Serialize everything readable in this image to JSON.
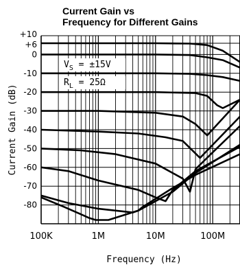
{
  "chart_data": {
    "type": "line",
    "title_line1": "Current Gain vs",
    "title_line2": "Frequency for Different Gains",
    "xlabel": "Frequency (Hz)",
    "ylabel": "Current Gain (dB)",
    "x_scale": "log",
    "xlim": [
      100000,
      300000000
    ],
    "ylim": [
      -90,
      10
    ],
    "grid": true,
    "x_ticks": [
      {
        "value": 100000,
        "label": "100K"
      },
      {
        "value": 1000000,
        "label": "1M"
      },
      {
        "value": 10000000,
        "label": "10M"
      },
      {
        "value": 100000000,
        "label": "100M"
      }
    ],
    "y_ticks": [
      {
        "value": 10,
        "label": "+10"
      },
      {
        "value": 6,
        "label": "+6"
      },
      {
        "value": 0,
        "label": "0"
      },
      {
        "value": -10,
        "label": "-10"
      },
      {
        "value": -20,
        "label": "-20"
      },
      {
        "value": -30,
        "label": "-30"
      },
      {
        "value": -40,
        "label": "-40"
      },
      {
        "value": -50,
        "label": "-50"
      },
      {
        "value": -60,
        "label": "-60"
      },
      {
        "value": -70,
        "label": "-70"
      },
      {
        "value": -80,
        "label": "-80"
      }
    ],
    "annotations": [
      {
        "text": "V",
        "sub": "S",
        "rest": " = ±15V"
      },
      {
        "text": "R",
        "sub": "L",
        "rest": " = 25Ω"
      }
    ],
    "series": [
      {
        "x": [
          100000,
          10000000,
          40000000,
          80000000,
          150000000,
          300000000
        ],
        "y": [
          6,
          6,
          5.8,
          5,
          2,
          -4
        ]
      },
      {
        "x": [
          100000,
          10000000,
          40000000,
          80000000,
          150000000,
          300000000
        ],
        "y": [
          0,
          0,
          -0.3,
          -1.5,
          -3,
          -7
        ]
      },
      {
        "x": [
          100000,
          10000000,
          40000000,
          80000000,
          150000000,
          300000000
        ],
        "y": [
          -10,
          -10,
          -10.3,
          -11,
          -12,
          -14
        ]
      },
      {
        "x": [
          100000,
          10000000,
          50000000,
          80000000,
          120000000,
          150000000,
          300000000
        ],
        "y": [
          -20,
          -20,
          -20.5,
          -22,
          -27,
          -28.5,
          -24
        ]
      },
      {
        "x": [
          100000,
          1000000,
          10000000,
          30000000,
          50000000,
          80000000,
          300000000
        ],
        "y": [
          -30,
          -30,
          -31,
          -33,
          -37,
          -43,
          -24
        ]
      },
      {
        "x": [
          100000,
          1000000,
          5000000,
          15000000,
          30000000,
          60000000,
          300000000
        ],
        "y": [
          -40,
          -41,
          -42,
          -44,
          -46,
          -55,
          -33
        ]
      },
      {
        "x": [
          100000,
          500000,
          2000000,
          10000000,
          30000000,
          40000000,
          50000000,
          100000000,
          300000000
        ],
        "y": [
          -50,
          -51,
          -53,
          -58,
          -66,
          -73,
          -61,
          -52,
          -38
        ]
      },
      {
        "x": [
          100000,
          300000,
          1000000,
          5000000,
          10000000,
          15000000,
          20000000,
          50000000,
          300000000
        ],
        "y": [
          -60,
          -62,
          -67,
          -72,
          -76,
          -78,
          -72,
          -62,
          -49
        ]
      },
      {
        "x": [
          100000,
          300000,
          1000000,
          2000000,
          4000000,
          5000000,
          6000000,
          20000000,
          50000000,
          300000000
        ],
        "y": [
          -75,
          -79,
          -82,
          -83,
          -84,
          -83,
          -81,
          -71,
          -64,
          -53
        ]
      },
      {
        "x": [
          100000,
          250000,
          500000,
          700000,
          900000,
          1500000,
          5000000,
          20000000,
          50000000,
          300000000
        ],
        "y": [
          -76,
          -81,
          -85,
          -87,
          -88,
          -88,
          -83,
          -73,
          -63,
          -48
        ]
      }
    ]
  }
}
